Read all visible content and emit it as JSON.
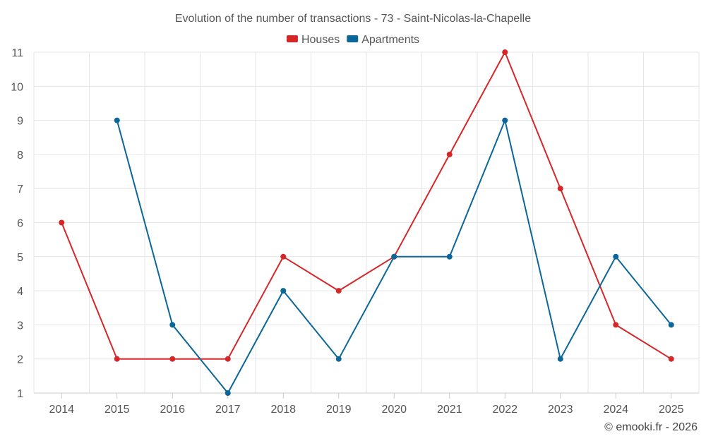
{
  "chart_data": {
    "type": "line",
    "title": "Evolution of the number of transactions - 73 - Saint-Nicolas-la-Chapelle",
    "categories": [
      "2014",
      "2015",
      "2016",
      "2017",
      "2018",
      "2019",
      "2020",
      "2021",
      "2022",
      "2023",
      "2024",
      "2025"
    ],
    "series": [
      {
        "name": "Houses",
        "color": "#d62728",
        "values": [
          6,
          2,
          2,
          2,
          5,
          4,
          5,
          8,
          11,
          7,
          3,
          2
        ]
      },
      {
        "name": "Apartments",
        "color": "#0b6699",
        "values": [
          null,
          9,
          3,
          1,
          4,
          2,
          5,
          5,
          9,
          2,
          5,
          3
        ]
      }
    ],
    "ylim": [
      1,
      11
    ],
    "yticks": [
      1,
      2,
      3,
      4,
      5,
      6,
      7,
      8,
      9,
      10,
      11
    ],
    "xlabel": "",
    "ylabel": "",
    "grid": true,
    "legend_position": "top-center"
  },
  "credit": "© emooki.fr - 2026"
}
